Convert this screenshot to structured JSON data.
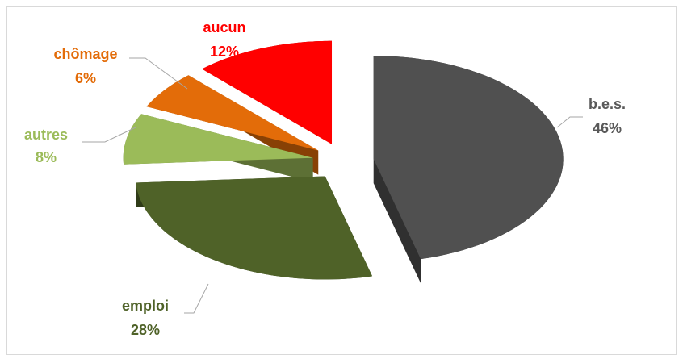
{
  "chart_data": {
    "type": "pie3d",
    "categories": [
      "b.e.s.",
      "emploi",
      "autres",
      "chômage",
      "aucun"
    ],
    "values": [
      46,
      28,
      8,
      6,
      12
    ],
    "value_labels": [
      "46%",
      "28%",
      "8%",
      "6%",
      "12%"
    ],
    "colors": [
      "#505050",
      "#4f6228",
      "#9bbb59",
      "#e36c09",
      "#ff0000"
    ]
  }
}
